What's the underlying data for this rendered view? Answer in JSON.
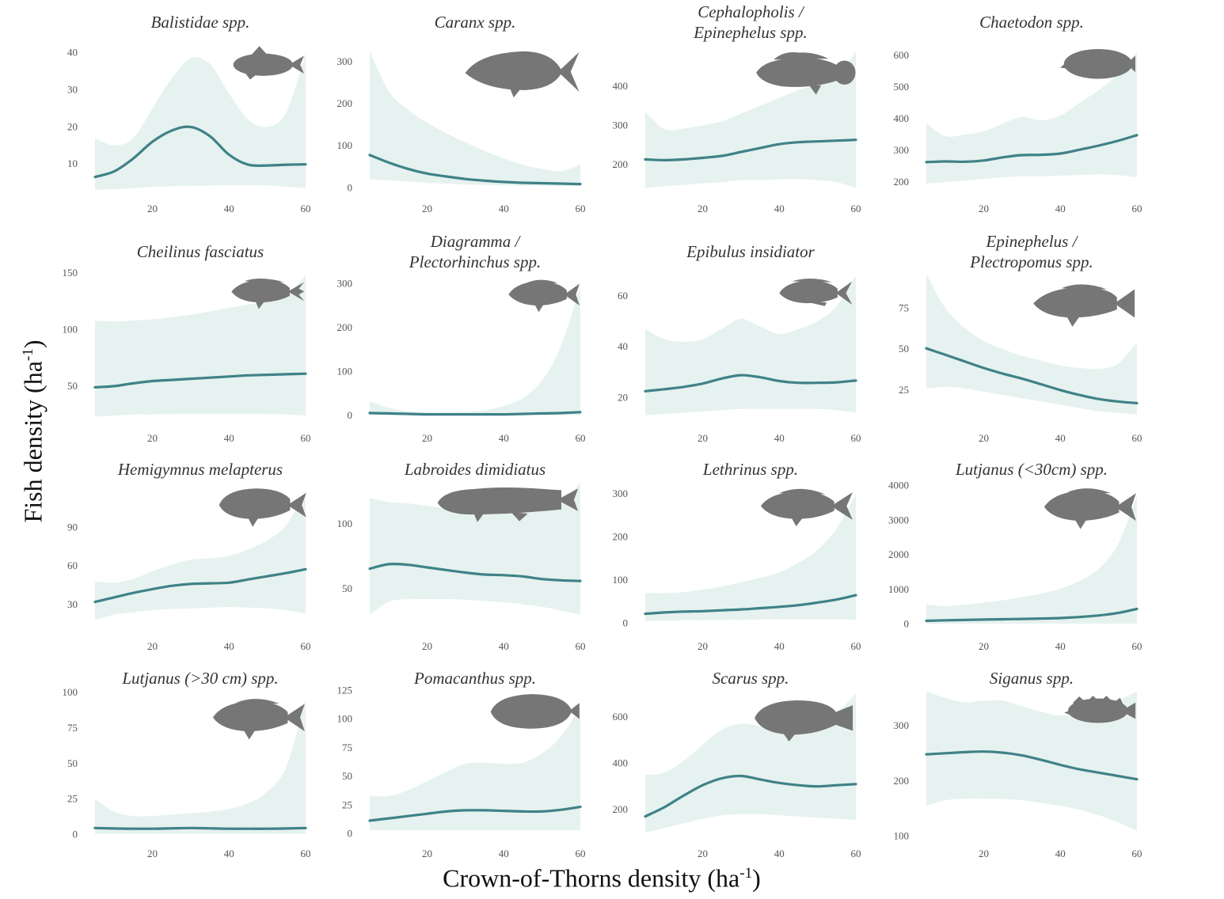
{
  "figure": {
    "ylabel": "Fish density (ha-1)",
    "xlabel": "Crown-of-Thorns density (ha-1)",
    "colors": {
      "ribbon": "#e6f2ef",
      "line": "#3f8288",
      "silhouette": "#767676"
    }
  },
  "chart_data": [
    {
      "type": "line",
      "title": "Balistidae spp.",
      "silhouette": "triggerfish-silhouette-icon",
      "xlim": [
        5,
        60
      ],
      "xticks": [
        20,
        40,
        60
      ],
      "ylim": [
        3,
        41
      ],
      "yticks": [
        10,
        20,
        30,
        40
      ],
      "x": [
        5,
        10,
        15,
        20,
        25,
        30,
        35,
        40,
        45,
        50,
        55,
        60
      ],
      "y": [
        6.5,
        8,
        11.5,
        16,
        19,
        20,
        17.5,
        12.5,
        9.8,
        9.6,
        9.8,
        9.9
      ],
      "lower": [
        3,
        3.2,
        3.5,
        3.8,
        4,
        4.1,
        4.2,
        4.3,
        4.3,
        4.2,
        3.9,
        3.5
      ],
      "upper": [
        17,
        15,
        17,
        25,
        33,
        38.5,
        37,
        29,
        22,
        20,
        24,
        40
      ]
    },
    {
      "type": "line",
      "title": "Caranx spp.",
      "silhouette": "jack-silhouette-icon",
      "xlim": [
        5,
        60
      ],
      "xticks": [
        20,
        40,
        60
      ],
      "ylim": [
        -5,
        330
      ],
      "yticks": [
        0,
        100,
        200,
        300
      ],
      "x": [
        5,
        10,
        15,
        20,
        25,
        30,
        35,
        40,
        45,
        50,
        55,
        60
      ],
      "y": [
        78,
        60,
        45,
        34,
        27,
        21,
        17,
        14,
        12,
        11,
        10,
        9
      ],
      "lower": [
        20,
        18,
        15,
        12,
        10,
        8,
        7,
        6,
        5,
        5,
        4,
        4
      ],
      "upper": [
        325,
        230,
        185,
        155,
        130,
        108,
        88,
        70,
        55,
        45,
        40,
        55
      ]
    },
    {
      "type": "line",
      "title": "Cephalopholis / Epinephelus spp.",
      "silhouette": "grouper-silhouette-icon",
      "xlim": [
        5,
        60
      ],
      "xticks": [
        20,
        40,
        60
      ],
      "ylim": [
        135,
        495
      ],
      "yticks": [
        200,
        300,
        400
      ],
      "x": [
        5,
        10,
        15,
        20,
        25,
        30,
        35,
        40,
        45,
        50,
        55,
        60
      ],
      "y": [
        213,
        211,
        213,
        217,
        222,
        232,
        242,
        252,
        257,
        259,
        261,
        263
      ],
      "lower": [
        140,
        145,
        148,
        152,
        155,
        160,
        160,
        162,
        163,
        160,
        155,
        140
      ],
      "upper": [
        335,
        290,
        292,
        300,
        310,
        330,
        350,
        370,
        390,
        405,
        420,
        490
      ]
    },
    {
      "type": "line",
      "title": "Chaetodon spp.",
      "silhouette": "butterflyfish-silhouette-icon",
      "xlim": [
        5,
        60
      ],
      "xticks": [
        20,
        40,
        60
      ],
      "ylim": [
        175,
        620
      ],
      "yticks": [
        200,
        300,
        400,
        500,
        600
      ],
      "x": [
        5,
        10,
        15,
        20,
        25,
        30,
        35,
        40,
        45,
        50,
        55,
        60
      ],
      "y": [
        263,
        265,
        264,
        268,
        278,
        285,
        286,
        290,
        302,
        315,
        330,
        348
      ],
      "lower": [
        195,
        200,
        205,
        210,
        215,
        218,
        218,
        220,
        222,
        224,
        222,
        215
      ],
      "upper": [
        385,
        345,
        350,
        360,
        385,
        405,
        395,
        410,
        450,
        490,
        540,
        610
      ]
    },
    {
      "type": "line",
      "title": "Cheilinus fasciatus",
      "silhouette": "wrasse-silhouette-icon",
      "xlim": [
        5,
        60
      ],
      "xticks": [
        20,
        40,
        60
      ],
      "ylim": [
        22,
        152
      ],
      "yticks": [
        50,
        100,
        150
      ],
      "x": [
        5,
        10,
        15,
        20,
        25,
        30,
        35,
        40,
        45,
        50,
        55,
        60
      ],
      "y": [
        49,
        50,
        52.5,
        54.5,
        55.5,
        56.5,
        57.5,
        58.5,
        59.5,
        60,
        60.5,
        61
      ],
      "lower": [
        23,
        24,
        25,
        25,
        25.5,
        25.5,
        25.5,
        25.5,
        25.5,
        25.5,
        25,
        24
      ],
      "upper": [
        108,
        107,
        108,
        109,
        111,
        113,
        116,
        119,
        122,
        125,
        130,
        148
      ]
    },
    {
      "type": "line",
      "title": "Diagramma / Plectorhinchus spp.",
      "silhouette": "sweetlips-silhouette-icon",
      "xlim": [
        5,
        60
      ],
      "xticks": [
        20,
        40,
        60
      ],
      "ylim": [
        -5,
        330
      ],
      "yticks": [
        0,
        100,
        200,
        300
      ],
      "x": [
        5,
        10,
        15,
        20,
        25,
        30,
        35,
        40,
        45,
        50,
        55,
        60
      ],
      "y": [
        6,
        5,
        4,
        3,
        3,
        3,
        3,
        3,
        4,
        5,
        6,
        8
      ],
      "lower": [
        1,
        1,
        1,
        1,
        1,
        1,
        1,
        1,
        1,
        1,
        1,
        1
      ],
      "upper": [
        33,
        18,
        10,
        8,
        8,
        9,
        12,
        22,
        40,
        80,
        160,
        295
      ]
    },
    {
      "type": "line",
      "title": "Epibulus insidiator",
      "silhouette": "slingjaw-wrasse-silhouette-icon",
      "xlim": [
        5,
        60
      ],
      "xticks": [
        20,
        40,
        60
      ],
      "ylim": [
        12,
        70
      ],
      "yticks": [
        20,
        40,
        60
      ],
      "x": [
        5,
        10,
        15,
        20,
        25,
        30,
        35,
        40,
        45,
        50,
        55,
        60
      ],
      "y": [
        22.5,
        23.3,
        24.2,
        25.5,
        27.5,
        28.8,
        28,
        26.5,
        25.8,
        25.8,
        26,
        26.7
      ],
      "lower": [
        13,
        13.5,
        14,
        14.5,
        15,
        15.5,
        15.5,
        15.5,
        15.5,
        15.5,
        15,
        14
      ],
      "upper": [
        47,
        43,
        42,
        43,
        47,
        51,
        48,
        45,
        47,
        50,
        56,
        68
      ]
    },
    {
      "type": "line",
      "title": "Epinephelus / Plectropomus spp.",
      "silhouette": "coral-trout-silhouette-icon",
      "xlim": [
        5,
        60
      ],
      "xticks": [
        20,
        40,
        60
      ],
      "ylim": [
        8,
        98
      ],
      "yticks": [
        25,
        50,
        75
      ],
      "x": [
        5,
        10,
        15,
        20,
        25,
        30,
        35,
        40,
        45,
        50,
        55,
        60
      ],
      "y": [
        50.5,
        46.5,
        42.5,
        38.5,
        35,
        32,
        28.5,
        25,
        22,
        19.5,
        18,
        17
      ],
      "lower": [
        26,
        27,
        26,
        24,
        22,
        20,
        18,
        16,
        14,
        12,
        11,
        10
      ],
      "upper": [
        96,
        75,
        63,
        55,
        50,
        46,
        43,
        40,
        38.5,
        38,
        41,
        54
      ]
    },
    {
      "type": "line",
      "title": "Hemigymnus melapterus",
      "silhouette": "thicklip-wrasse-silhouette-icon",
      "xlim": [
        5,
        60
      ],
      "xticks": [
        20,
        40,
        60
      ],
      "ylim": [
        12,
        128
      ],
      "yticks": [
        30,
        60,
        90
      ],
      "x": [
        5,
        10,
        15,
        20,
        25,
        30,
        35,
        40,
        45,
        50,
        55,
        60
      ],
      "y": [
        32,
        35.5,
        39,
        42,
        44.5,
        46,
        46.5,
        47,
        49.5,
        52,
        54.5,
        57.5
      ],
      "lower": [
        18,
        22,
        24,
        25.5,
        26.5,
        27,
        27.5,
        28,
        27.5,
        27,
        25.5,
        23
      ],
      "upper": [
        48,
        47,
        50,
        56,
        61,
        65,
        66,
        68,
        73,
        80,
        92,
        118
      ]
    },
    {
      "type": "line",
      "title": "Labroides dimidiatus",
      "silhouette": "cleaner-wrasse-silhouette-icon",
      "xlim": [
        5,
        60
      ],
      "xticks": [
        20,
        40,
        60
      ],
      "ylim": [
        20,
        135
      ],
      "yticks": [
        50,
        100
      ],
      "x": [
        5,
        10,
        15,
        20,
        25,
        30,
        35,
        40,
        45,
        50,
        55,
        60
      ],
      "y": [
        65.5,
        69,
        68.5,
        66.5,
        64.5,
        62.5,
        61,
        60.5,
        59.5,
        57.5,
        56.5,
        56
      ],
      "lower": [
        30,
        40,
        42,
        42,
        42,
        41.5,
        40.5,
        39.5,
        38,
        36,
        33,
        30
      ],
      "upper": [
        120,
        117,
        116,
        114,
        112,
        110,
        109,
        109,
        109,
        110,
        116,
        132
      ]
    },
    {
      "type": "line",
      "title": "Lethrinus spp.",
      "silhouette": "emperor-silhouette-icon",
      "xlim": [
        5,
        60
      ],
      "xticks": [
        20,
        40,
        60
      ],
      "ylim": [
        -10,
        335
      ],
      "yticks": [
        0,
        100,
        200,
        300
      ],
      "x": [
        5,
        10,
        15,
        20,
        25,
        30,
        35,
        40,
        45,
        50,
        55,
        60
      ],
      "y": [
        22,
        25,
        27,
        28,
        30,
        32,
        35,
        38,
        42,
        48,
        55,
        65
      ],
      "lower": [
        5,
        6,
        7,
        7,
        8,
        8,
        8.5,
        9,
        9,
        9,
        9,
        8
      ],
      "upper": [
        70,
        70,
        72,
        78,
        85,
        95,
        105,
        118,
        140,
        170,
        220,
        300
      ]
    },
    {
      "type": "line",
      "title": "Lutjanus (<30cm) spp.",
      "silhouette": "small-snapper-silhouette-icon",
      "xlim": [
        5,
        60
      ],
      "xticks": [
        20,
        40,
        60
      ],
      "ylim": [
        -100,
        4200
      ],
      "yticks": [
        0,
        1000,
        2000,
        3000,
        4000
      ],
      "x": [
        5,
        10,
        15,
        20,
        25,
        30,
        35,
        40,
        45,
        50,
        55,
        60
      ],
      "y": [
        95,
        110,
        120,
        130,
        140,
        150,
        160,
        175,
        205,
        250,
        320,
        440
      ],
      "lower": [
        10,
        10,
        12,
        12,
        12,
        12,
        12,
        12,
        12,
        11,
        10,
        8
      ],
      "upper": [
        570,
        520,
        560,
        620,
        690,
        780,
        880,
        1020,
        1250,
        1600,
        2300,
        3700
      ]
    },
    {
      "type": "line",
      "title": "Lutjanus (>30 cm) spp.",
      "silhouette": "large-snapper-silhouette-icon",
      "xlim": [
        5,
        60
      ],
      "xticks": [
        20,
        40,
        60
      ],
      "ylim": [
        -2,
        104
      ],
      "yticks": [
        0,
        25,
        50,
        75,
        100
      ],
      "x": [
        5,
        10,
        15,
        20,
        25,
        30,
        35,
        40,
        45,
        50,
        55,
        60
      ],
      "y": [
        4.5,
        4.2,
        4,
        4,
        4.3,
        4.5,
        4.3,
        4,
        4,
        4,
        4.2,
        4.5
      ],
      "lower": [
        0.5,
        0.5,
        0.5,
        0.5,
        0.5,
        0.5,
        0.5,
        0.5,
        0.5,
        0.5,
        0.5,
        0.5
      ],
      "upper": [
        25,
        16,
        13,
        13,
        14,
        15,
        16,
        18,
        22,
        30,
        48,
        95
      ]
    },
    {
      "type": "line",
      "title": "Pomacanthus spp.",
      "silhouette": "angelfish-silhouette-icon",
      "xlim": [
        5,
        60
      ],
      "xticks": [
        20,
        40,
        60
      ],
      "ylim": [
        -3,
        128
      ],
      "yticks": [
        0,
        25,
        50,
        75,
        100,
        125
      ],
      "x": [
        5,
        10,
        15,
        20,
        25,
        30,
        35,
        40,
        45,
        50,
        55,
        60
      ],
      "y": [
        11.5,
        13.5,
        15.5,
        17.5,
        19.5,
        20.5,
        20.5,
        20,
        19.5,
        19.5,
        21,
        23.5
      ],
      "lower": [
        3,
        3,
        3,
        3,
        3,
        3,
        3,
        3,
        3,
        3,
        3,
        3
      ],
      "upper": [
        33,
        33,
        38,
        46,
        54,
        61,
        62,
        61,
        62,
        70,
        85,
        110
      ]
    },
    {
      "type": "line",
      "title": "Scarus spp.",
      "silhouette": "parrotfish-silhouette-icon",
      "xlim": [
        5,
        60
      ],
      "xticks": [
        20,
        40,
        60
      ],
      "ylim": [
        80,
        730
      ],
      "yticks": [
        200,
        400,
        600
      ],
      "x": [
        5,
        10,
        15,
        20,
        25,
        30,
        35,
        40,
        45,
        50,
        55,
        60
      ],
      "y": [
        170,
        210,
        260,
        305,
        335,
        345,
        330,
        315,
        305,
        300,
        305,
        310
      ],
      "lower": [
        100,
        120,
        140,
        160,
        175,
        180,
        180,
        175,
        170,
        165,
        160,
        155
      ],
      "upper": [
        350,
        360,
        410,
        480,
        545,
        570,
        560,
        540,
        550,
        575,
        620,
        700
      ]
    },
    {
      "type": "line",
      "title": "Siganus spp.",
      "silhouette": "rabbitfish-silhouette-icon",
      "xlim": [
        5,
        60
      ],
      "xticks": [
        20,
        40,
        60
      ],
      "ylim": [
        98,
        370
      ],
      "yticks": [
        100,
        200,
        300
      ],
      "x": [
        5,
        10,
        15,
        20,
        25,
        30,
        35,
        40,
        45,
        50,
        55,
        60
      ],
      "y": [
        248,
        250,
        252,
        253,
        251,
        246,
        238,
        229,
        221,
        215,
        209,
        203
      ],
      "lower": [
        155,
        165,
        168,
        168,
        167,
        165,
        160,
        155,
        148,
        138,
        125,
        110
      ],
      "upper": [
        362,
        350,
        342,
        345,
        345,
        335,
        325,
        318,
        322,
        330,
        345,
        362
      ]
    }
  ]
}
